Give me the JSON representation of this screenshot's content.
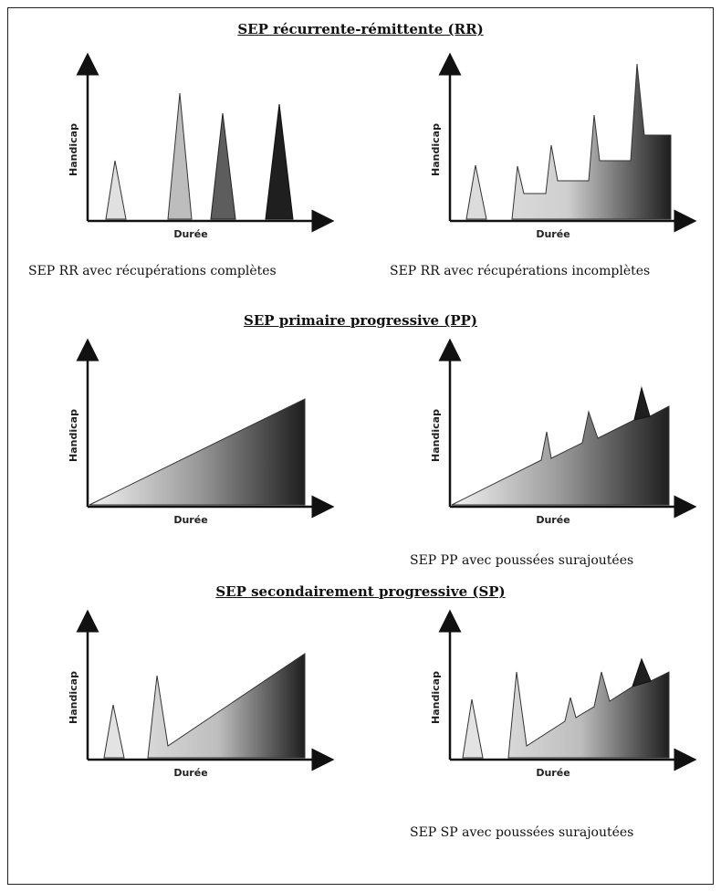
{
  "sections": {
    "rr": {
      "title": "SEP récurrente-rémittente (RR)"
    },
    "pp": {
      "title": "SEP primaire progressive (PP)"
    },
    "sp": {
      "title": "SEP secondairement progressive (SP)"
    }
  },
  "captions": {
    "rr_complete": "SEP RR avec récupérations complètes",
    "rr_incomplete": "SEP RR avec récupérations incomplètes",
    "pp_pushes": "SEP PP avec poussées surajoutées",
    "sp_pushes": "SEP SP avec poussées surajoutées"
  },
  "axes": {
    "y_label": "Handicap",
    "x_label": "Durée"
  },
  "colors": {
    "light": "#e6e6e6",
    "mid": "#9a9a9a",
    "dark": "#5a5a5a",
    "darkest": "#1f1f1f",
    "stroke": "#222222"
  }
}
